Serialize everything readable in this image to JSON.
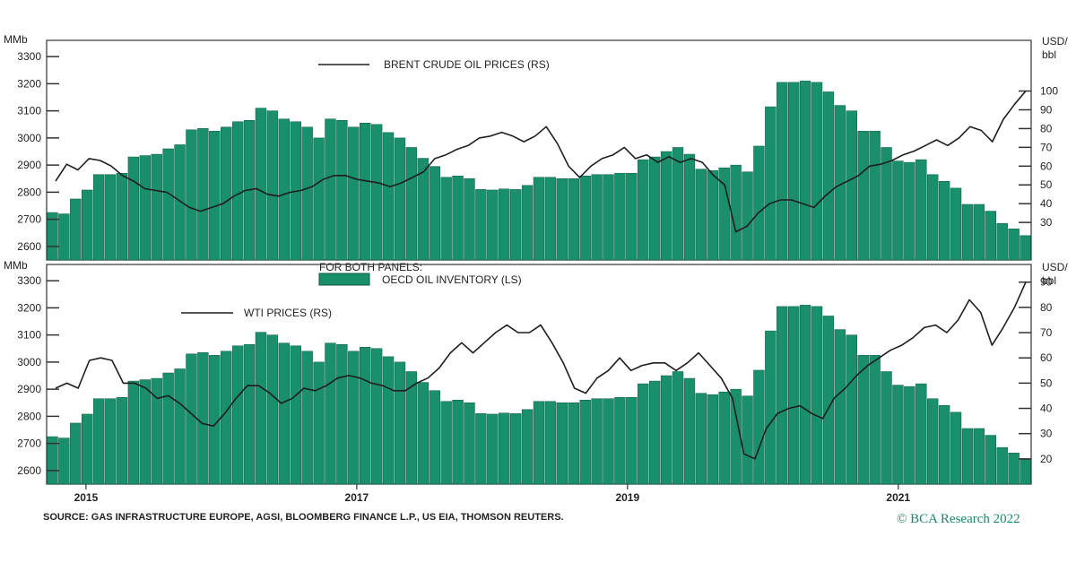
{
  "chart_data": {
    "type": "bar",
    "footer": {
      "source": "SOURCE: GAS INFRASTRUCTURE EUROPE, AGSI, BLOOMBERG FINANCE L.P., US EIA, THOMSON REUTERS.",
      "logo": "© BCA Research 2022"
    },
    "x_ticks": [
      "2015",
      "2017",
      "2019",
      "2021"
    ],
    "colors": {
      "bars": "#1a8f6c",
      "bar_edge": "#0c5a42",
      "line": "#1e1e1e",
      "frame": "#333333"
    },
    "legend_shared": {
      "heading": "FOR BOTH PANELS:",
      "bar_label": "OECD OIL INVENTORY (LS)"
    },
    "inventory_series": {
      "name": "OECD OIL INVENTORY (LS)",
      "values": [
        2725,
        2720,
        2775,
        2808,
        2865,
        2865,
        2870,
        2930,
        2935,
        2940,
        2960,
        2975,
        3030,
        3035,
        3025,
        3040,
        3060,
        3065,
        3110,
        3100,
        3070,
        3060,
        3040,
        3000,
        3070,
        3065,
        3040,
        3055,
        3050,
        3020,
        3000,
        2965,
        2925,
        2895,
        2855,
        2860,
        2850,
        2810,
        2808,
        2812,
        2810,
        2825,
        2855,
        2855,
        2850,
        2850,
        2860,
        2865,
        2865,
        2870,
        2870,
        2920,
        2930,
        2950,
        2965,
        2940,
        2885,
        2880,
        2890,
        2900,
        2875,
        2970,
        3115,
        3205,
        3205,
        3210,
        3205,
        3170,
        3120,
        3100,
        3025,
        3025,
        2965,
        2915,
        2910,
        2920,
        2865,
        2840,
        2815,
        2755,
        2755,
        2730,
        2685,
        2665,
        2640
      ]
    },
    "panels": [
      {
        "left_axis_label": "MMb",
        "right_axis_label_1": "USD/",
        "right_axis_label_2": "bbl",
        "left_ticks": [
          "3300",
          "3200",
          "3100",
          "3000",
          "2900",
          "2800",
          "2700",
          "2600"
        ],
        "right_ticks": [
          "100",
          "90",
          "80",
          "70",
          "60",
          "50",
          "40",
          "30"
        ],
        "ylim_left": [
          2550,
          3360
        ],
        "ylim_right": [
          10,
          127
        ],
        "line_series": {
          "name": "BRENT CRUDE OIL PRICES (RS)",
          "values": [
            52,
            61,
            58,
            64,
            63,
            60,
            55,
            52,
            48,
            47,
            46,
            42,
            38,
            36,
            38,
            40,
            44,
            47,
            48,
            45,
            44,
            46,
            47,
            49,
            53,
            55,
            55,
            53,
            52,
            51,
            49,
            51,
            54,
            57,
            64,
            66,
            69,
            71,
            75,
            76,
            78,
            76,
            73,
            76,
            81,
            72,
            60,
            54,
            60,
            64,
            66,
            70,
            64,
            66,
            62,
            65,
            62,
            64,
            62,
            55,
            50,
            25,
            28,
            35,
            40,
            42,
            42,
            40,
            38,
            44,
            49,
            52,
            55,
            60,
            61,
            63,
            66,
            68,
            71,
            74,
            71,
            75,
            81,
            79,
            73,
            85,
            93,
            100
          ]
        }
      },
      {
        "left_axis_label": "MMb",
        "right_axis_label_1": "USD/",
        "right_axis_label_2": "bbl",
        "left_ticks": [
          "3300",
          "3200",
          "3100",
          "3000",
          "2900",
          "2800",
          "2700",
          "2600"
        ],
        "right_ticks": [
          "90",
          "80",
          "70",
          "60",
          "50",
          "40",
          "30",
          "20"
        ],
        "ylim_left": [
          2550,
          3360
        ],
        "ylim_right": [
          10,
          97
        ],
        "line_series": {
          "name": "WTI PRICES (RS)",
          "values": [
            48,
            50,
            48,
            59,
            60,
            59,
            50,
            50,
            48,
            44,
            45,
            42,
            38,
            34,
            33,
            38,
            44,
            49,
            49,
            46,
            42,
            44,
            48,
            47,
            49,
            52,
            53,
            52,
            50,
            49,
            47,
            47,
            50,
            52,
            56,
            62,
            66,
            62,
            66,
            70,
            73,
            70,
            70,
            73,
            66,
            58,
            48,
            46,
            52,
            55,
            60,
            55,
            57,
            58,
            58,
            55,
            58,
            62,
            57,
            52,
            44,
            22,
            20,
            32,
            38,
            40,
            41,
            38,
            36,
            44,
            48,
            53,
            57,
            60,
            63,
            65,
            68,
            72,
            73,
            70,
            75,
            83,
            78,
            65,
            72,
            80,
            90
          ]
        }
      }
    ]
  }
}
